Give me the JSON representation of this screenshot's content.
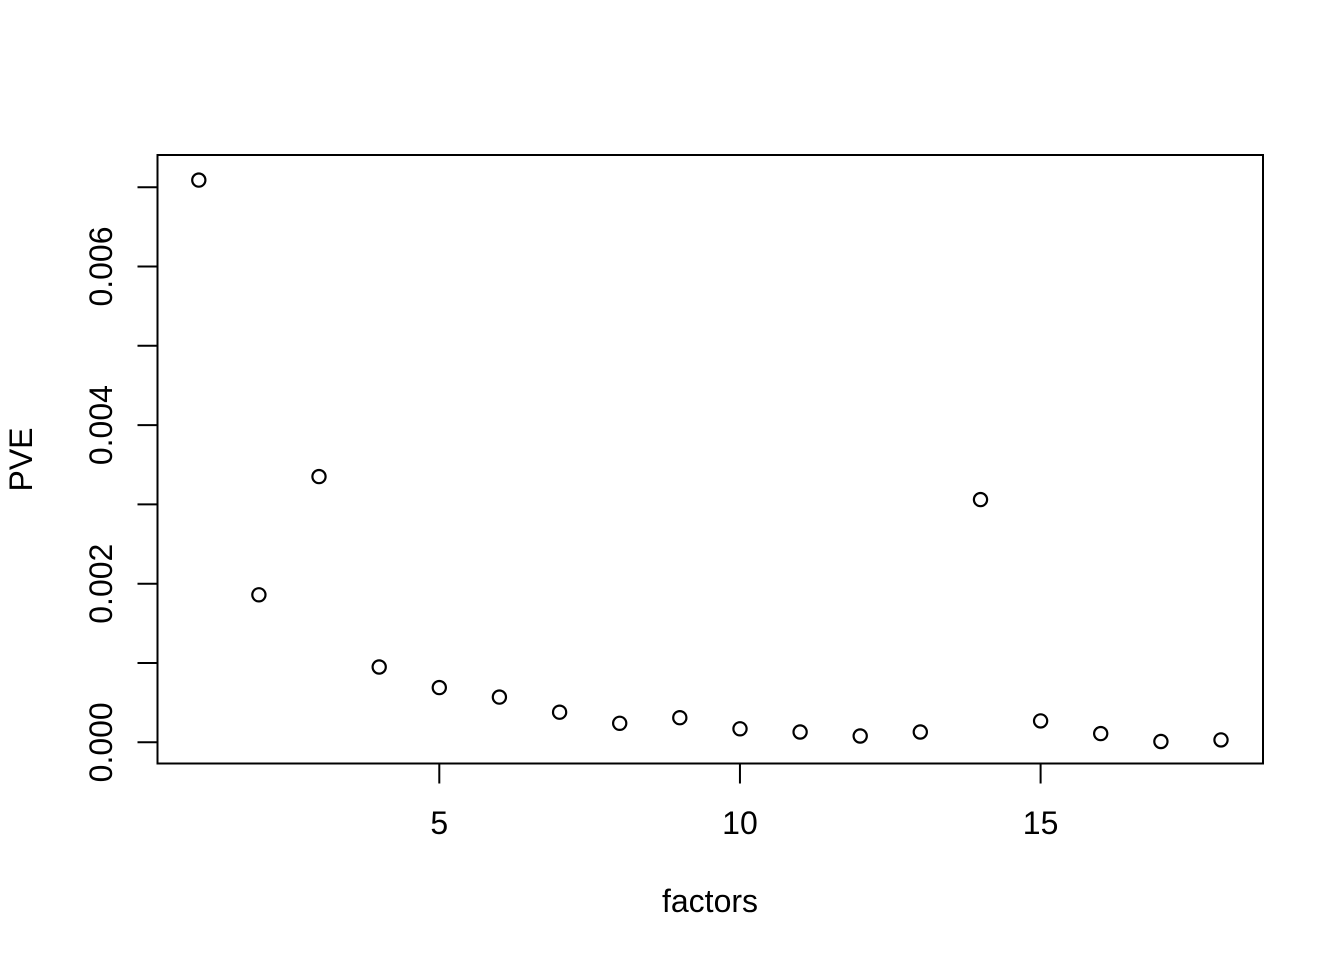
{
  "figure": {
    "background_color": "#ffffff",
    "foreground_color": "#000000"
  },
  "chart_data": {
    "type": "scatter",
    "title": "",
    "xlabel": "factors",
    "ylabel": "PVE",
    "x": [
      1,
      2,
      3,
      4,
      5,
      6,
      7,
      8,
      9,
      10,
      11,
      12,
      13,
      14,
      15,
      16,
      17,
      18
    ],
    "y": [
      0.00709,
      0.00186,
      0.00335,
      0.00095,
      0.00069,
      0.00057,
      0.00038,
      0.00024,
      0.00031,
      0.00017,
      0.00013,
      8e-05,
      0.00013,
      0.00306,
      0.00027,
      0.00011,
      1e-05,
      3e-05
    ],
    "xlim": [
      0.32,
      18.68
    ],
    "ylim": [
      0.0,
      0.0071
    ],
    "x_ticks": [
      5,
      10,
      15
    ],
    "x_tick_labels": [
      "5",
      "10",
      "15"
    ],
    "y_ticks": [
      0.0,
      0.001,
      0.002,
      0.003,
      0.004,
      0.005,
      0.006,
      0.007
    ],
    "y_tick_labels": [
      "0.000",
      "",
      "0.002",
      "",
      "0.004",
      "",
      "0.006",
      ""
    ],
    "marker": "open-circle",
    "marker_color": "#000000",
    "grid": false,
    "legend_position": "none"
  }
}
